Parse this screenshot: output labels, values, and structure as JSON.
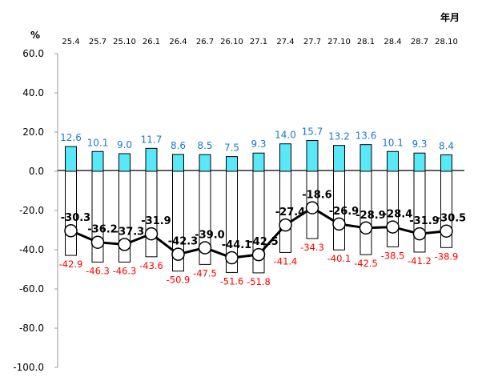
{
  "chart_data": {
    "type": "bar",
    "unit_label": "%",
    "x_unit_label": "年月",
    "categories": [
      "25.4",
      "25.7",
      "25.10",
      "26.1",
      "26.4",
      "26.7",
      "26.10",
      "27.1",
      "27.4",
      "27.7",
      "27.10",
      "28.1",
      "28.4",
      "28.7",
      "28.10"
    ],
    "y_ticks": [
      "60.0",
      "40.0",
      "20.0",
      "0.0",
      "-20.0",
      "-40.0",
      "-60.0",
      "-80.0",
      "-100.0"
    ],
    "ylim": [
      -100,
      60
    ],
    "series": [
      {
        "values": [
          12.6,
          10.1,
          9.0,
          11.7,
          8.6,
          8.5,
          7.5,
          9.3,
          14.0,
          15.7,
          13.2,
          13.6,
          10.1,
          9.3,
          8.4
        ],
        "labels": [
          "12.6",
          "10.1",
          "9.0",
          "11.7",
          "8.6",
          "8.5",
          "7.5",
          "9.3",
          "14.0",
          "15.7",
          "13.2",
          "13.6",
          "10.1",
          "9.3",
          "8.4"
        ],
        "color": "#58E8F8",
        "label_color": "#1E78C8"
      },
      {
        "values": [
          -42.9,
          -46.3,
          -46.3,
          -43.6,
          -50.9,
          -47.5,
          -51.6,
          -51.8,
          -41.4,
          -34.3,
          -40.1,
          -42.5,
          -38.5,
          -41.2,
          -38.9
        ],
        "labels": [
          "-42.9",
          "-46.3",
          "-46.3",
          "-43.6",
          "-50.9",
          "-47.5",
          "-51.6",
          "-51.8",
          "-41.4",
          "-34.3",
          "-40.1",
          "-42.5",
          "-38.5",
          "-41.2",
          "-38.9"
        ],
        "color": "#FFFFFF",
        "label_color": "#FF0000"
      },
      {
        "values": [
          -30.3,
          -36.2,
          -37.3,
          -31.9,
          -42.3,
          -39.0,
          -44.1,
          -42.5,
          -27.4,
          -18.6,
          -26.9,
          -28.9,
          -28.4,
          -31.9,
          -30.5
        ],
        "labels": [
          "-30.3",
          "-36.2",
          "-37.3",
          "-31.9",
          "-42.3",
          "-39.0",
          "-44.1",
          "-42.5",
          "-27.4",
          "-18.6",
          "-26.9",
          "-28.9",
          "-28.4",
          "-31.9",
          "-30.5"
        ],
        "color": "#000000",
        "label_color": "#000000",
        "kind": "line"
      }
    ],
    "grid": false,
    "legend": "none"
  }
}
